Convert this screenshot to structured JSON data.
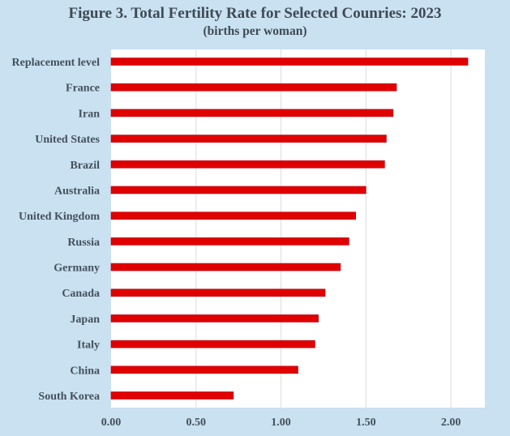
{
  "chart_data": {
    "type": "bar",
    "orientation": "horizontal",
    "title": "Figure 3. Total Fertility Rate for Selected Counries: 2023",
    "subtitle": "(births per woman)",
    "xlabel": "",
    "ylabel": "",
    "categories": [
      "Replacement level",
      "France",
      "Iran",
      "United States",
      "Brazil",
      "Australia",
      "United Kingdom",
      "Russia",
      "Germany",
      "Canada",
      "Japan",
      "Italy",
      "China",
      "South Korea"
    ],
    "values": [
      2.1,
      1.68,
      1.66,
      1.62,
      1.61,
      1.5,
      1.44,
      1.4,
      1.35,
      1.26,
      1.22,
      1.2,
      1.1,
      0.72
    ],
    "xlim": [
      0,
      2.2
    ],
    "xticks": [
      0,
      0.5,
      1.0,
      1.5,
      2.0
    ],
    "xtick_labels": [
      "0.00",
      "0.50",
      "1.00",
      "1.50",
      "2.00"
    ],
    "grid": "vertical",
    "legend": "none",
    "colors": {
      "bar": "#e00000",
      "bar_edge": "#b00010",
      "background": "#c9e1f1",
      "plot_background": "#ffffff",
      "grid": "#dcdcdc",
      "text": "#44505c"
    }
  }
}
